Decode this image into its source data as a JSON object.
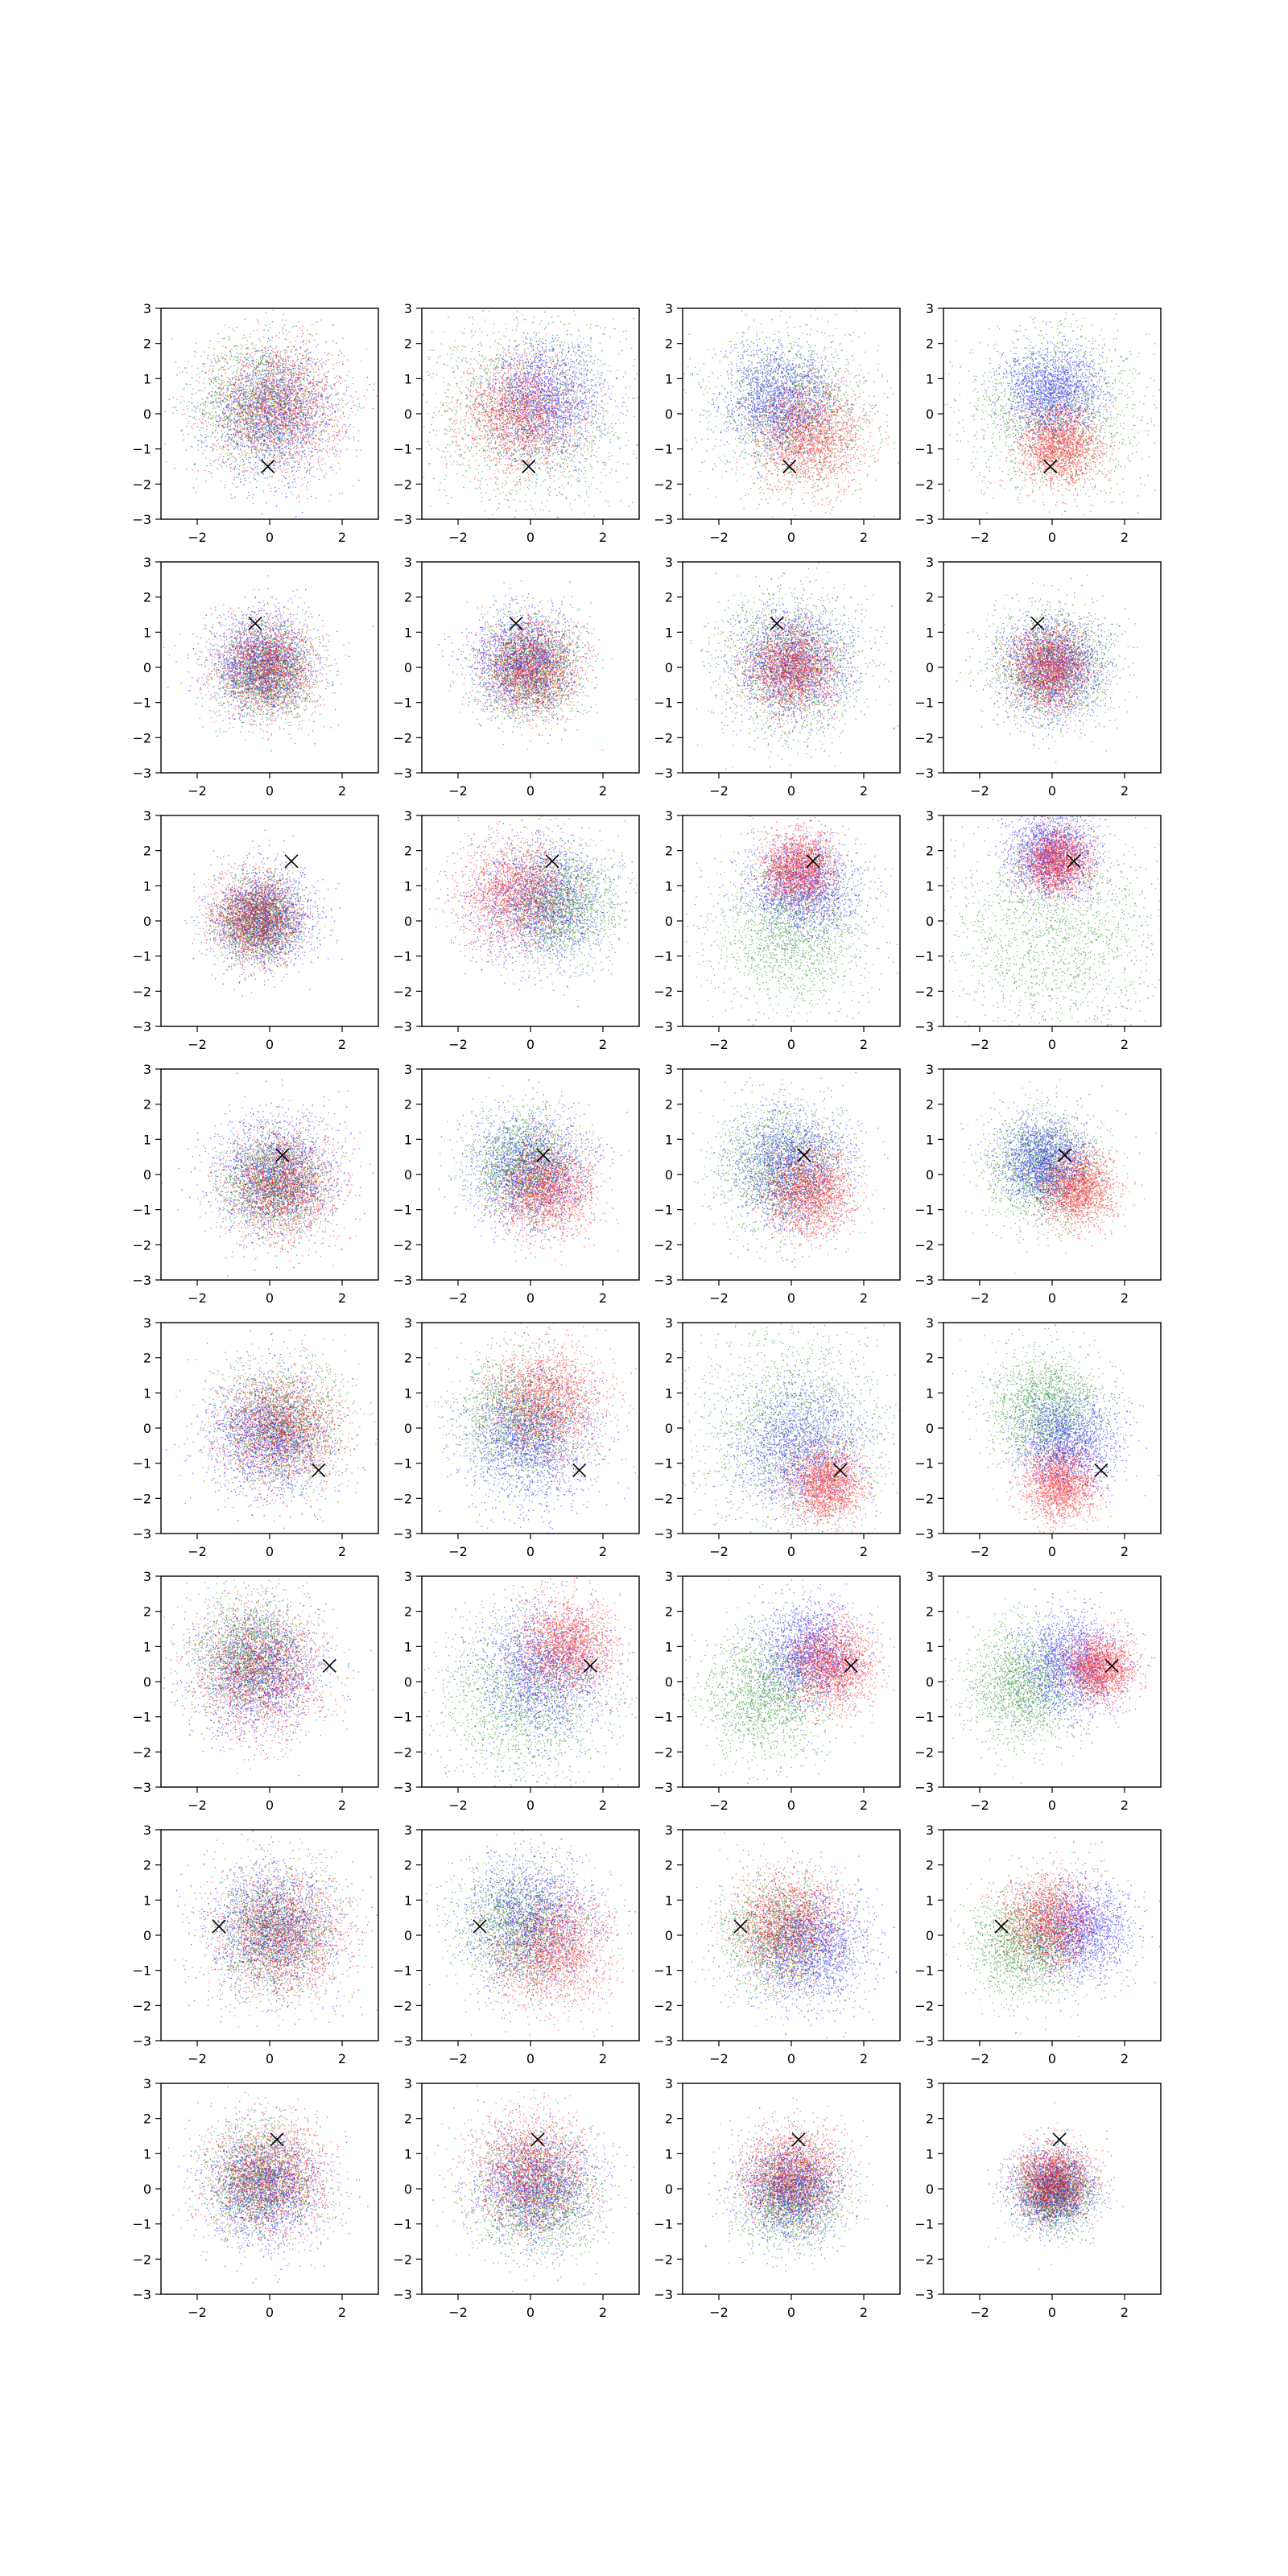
{
  "chart_data": {
    "type": "scatter",
    "layout": {
      "rows": 8,
      "cols": 4
    },
    "axes": {
      "xlim": [
        -3,
        3
      ],
      "ylim": [
        -3,
        3
      ],
      "xticks": [
        -2,
        0,
        2
      ],
      "yticks": [
        -3,
        -2,
        -1,
        0,
        1,
        2,
        3
      ],
      "grid": false
    },
    "series_colors": {
      "red": "#ff0000",
      "green": "#008000",
      "blue": "#0000ff",
      "marker": "#000000"
    },
    "points_per_series": 1800,
    "tick_labels": {
      "x": [
        "−2",
        "0",
        "2"
      ],
      "y": [
        "−3",
        "−2",
        "−1",
        "0",
        "1",
        "2",
        "3"
      ]
    },
    "panels": [
      {
        "marker": [
          -0.05,
          -1.5
        ],
        "r": {
          "c": [
            0.2,
            0.2
          ],
          "s": 0.9
        },
        "g": {
          "c": [
            -0.2,
            0.3
          ],
          "s": 0.9
        },
        "b": {
          "c": [
            0.1,
            0.0
          ],
          "s": 0.9
        }
      },
      {
        "marker": [
          -0.05,
          -1.5
        ],
        "r": {
          "c": [
            -0.3,
            0.0
          ],
          "s": 0.8
        },
        "g": {
          "c": [
            0.0,
            0.0
          ],
          "s": 1.4
        },
        "b": {
          "c": [
            0.4,
            0.4
          ],
          "s": 0.8
        }
      },
      {
        "marker": [
          -0.05,
          -1.5
        ],
        "r": {
          "c": [
            0.5,
            -0.6
          ],
          "s": 0.75
        },
        "g": {
          "c": [
            0.0,
            0.0
          ],
          "s": 1.1
        },
        "b": {
          "c": [
            -0.3,
            0.4
          ],
          "s": 0.75
        }
      },
      {
        "marker": [
          -0.05,
          -1.5
        ],
        "r": {
          "c": [
            0.2,
            -0.9
          ],
          "s": 0.55
        },
        "g": {
          "c": [
            0.0,
            0.0
          ],
          "s": 1.2
        },
        "b": {
          "c": [
            0.0,
            0.6
          ],
          "s": 0.65
        }
      },
      {
        "marker": [
          -0.4,
          1.25
        ],
        "r": {
          "c": [
            -0.1,
            0.0
          ],
          "s": 0.7
        },
        "g": {
          "c": [
            -0.1,
            -0.1
          ],
          "s": 0.65
        },
        "b": {
          "c": [
            -0.2,
            0.1
          ],
          "s": 0.7
        }
      },
      {
        "marker": [
          -0.4,
          1.25
        ],
        "r": {
          "c": [
            0.0,
            0.0
          ],
          "s": 0.65
        },
        "g": {
          "c": [
            0.0,
            0.0
          ],
          "s": 0.7
        },
        "b": {
          "c": [
            -0.2,
            0.2
          ],
          "s": 0.7
        }
      },
      {
        "marker": [
          -0.4,
          1.25
        ],
        "r": {
          "c": [
            0.0,
            0.0
          ],
          "s": 0.6
        },
        "g": {
          "c": [
            0.0,
            0.0
          ],
          "s": 1.0
        },
        "b": {
          "c": [
            0.0,
            0.1
          ],
          "s": 0.8
        }
      },
      {
        "marker": [
          -0.4,
          1.25
        ],
        "r": {
          "c": [
            -0.1,
            0.0
          ],
          "s": 0.55
        },
        "g": {
          "c": [
            0.0,
            0.0
          ],
          "s": 0.8
        },
        "b": {
          "c": [
            0.0,
            0.0
          ],
          "s": 0.7
        }
      },
      {
        "marker": [
          0.6,
          1.7
        ],
        "r": {
          "c": [
            -0.4,
            0.1
          ],
          "s": 0.6
        },
        "g": {
          "c": [
            -0.3,
            0.0
          ],
          "s": 0.55
        },
        "b": {
          "c": [
            -0.2,
            0.1
          ],
          "s": 0.7
        }
      },
      {
        "marker": [
          0.6,
          1.7
        ],
        "r": {
          "c": [
            -0.4,
            0.8
          ],
          "s": 0.8
        },
        "g": {
          "c": [
            0.8,
            0.5
          ],
          "s": 0.8
        },
        "b": {
          "c": [
            0.2,
            0.6
          ],
          "s": 0.9
        }
      },
      {
        "marker": [
          0.6,
          1.7
        ],
        "r": {
          "c": [
            0.2,
            1.5
          ],
          "s": 0.5
        },
        "g": {
          "c": [
            0.0,
            -0.2
          ],
          "s": 1.1
        },
        "b": {
          "c": [
            0.3,
            1.0
          ],
          "s": 0.7
        }
      },
      {
        "marker": [
          0.6,
          1.7
        ],
        "r": {
          "c": [
            0.1,
            1.7
          ],
          "s": 0.45
        },
        "g": {
          "c": [
            0.0,
            -0.3
          ],
          "s": 1.5
        },
        "b": {
          "c": [
            0.0,
            1.9
          ],
          "s": 0.6
        }
      },
      {
        "marker": [
          0.35,
          0.55
        ],
        "r": {
          "c": [
            0.3,
            -0.3
          ],
          "s": 0.75
        },
        "g": {
          "c": [
            0.1,
            -0.2
          ],
          "s": 0.7
        },
        "b": {
          "c": [
            0.2,
            0.0
          ],
          "s": 0.85
        }
      },
      {
        "marker": [
          0.35,
          0.55
        ],
        "r": {
          "c": [
            0.4,
            -0.4
          ],
          "s": 0.65
        },
        "g": {
          "c": [
            -0.2,
            0.3
          ],
          "s": 0.75
        },
        "b": {
          "c": [
            0.0,
            0.1
          ],
          "s": 0.8
        }
      },
      {
        "marker": [
          0.35,
          0.55
        ],
        "r": {
          "c": [
            0.5,
            -0.5
          ],
          "s": 0.6
        },
        "g": {
          "c": [
            -0.3,
            0.3
          ],
          "s": 0.9
        },
        "b": {
          "c": [
            0.0,
            0.2
          ],
          "s": 0.8
        }
      },
      {
        "marker": [
          0.35,
          0.55
        ],
        "r": {
          "c": [
            0.7,
            -0.4
          ],
          "s": 0.5
        },
        "g": {
          "c": [
            -0.2,
            0.2
          ],
          "s": 0.8
        },
        "b": {
          "c": [
            -0.2,
            0.4
          ],
          "s": 0.6
        }
      },
      {
        "marker": [
          1.35,
          -1.2
        ],
        "r": {
          "c": [
            0.3,
            0.0
          ],
          "s": 0.8
        },
        "g": {
          "c": [
            0.3,
            0.1
          ],
          "s": 0.85
        },
        "b": {
          "c": [
            0.0,
            -0.2
          ],
          "s": 0.85
        }
      },
      {
        "marker": [
          1.35,
          -1.2
        ],
        "r": {
          "c": [
            0.4,
            0.8
          ],
          "s": 0.8
        },
        "g": {
          "c": [
            -0.3,
            0.3
          ],
          "s": 0.9
        },
        "b": {
          "c": [
            0.0,
            -0.3
          ],
          "s": 0.9
        }
      },
      {
        "marker": [
          1.35,
          -1.2
        ],
        "r": {
          "c": [
            1.0,
            -1.6
          ],
          "s": 0.5
        },
        "g": {
          "c": [
            0.0,
            0.0
          ],
          "s": 1.4
        },
        "b": {
          "c": [
            0.2,
            -0.5
          ],
          "s": 0.9
        }
      },
      {
        "marker": [
          1.35,
          -1.2
        ],
        "r": {
          "c": [
            0.2,
            -1.6
          ],
          "s": 0.5
        },
        "g": {
          "c": [
            -0.2,
            0.6
          ],
          "s": 0.8
        },
        "b": {
          "c": [
            0.4,
            -0.4
          ],
          "s": 0.7
        }
      },
      {
        "marker": [
          1.65,
          0.45
        ],
        "r": {
          "c": [
            -0.3,
            0.3
          ],
          "s": 0.9
        },
        "g": {
          "c": [
            -0.5,
            0.7
          ],
          "s": 0.8
        },
        "b": {
          "c": [
            -0.3,
            0.3
          ],
          "s": 0.85
        }
      },
      {
        "marker": [
          1.65,
          0.45
        ],
        "r": {
          "c": [
            1.0,
            1.0
          ],
          "s": 0.65
        },
        "g": {
          "c": [
            -0.2,
            -0.5
          ],
          "s": 1.2
        },
        "b": {
          "c": [
            0.3,
            0.3
          ],
          "s": 0.9
        }
      },
      {
        "marker": [
          1.65,
          0.45
        ],
        "r": {
          "c": [
            1.1,
            0.5
          ],
          "s": 0.6
        },
        "g": {
          "c": [
            -0.7,
            -0.3
          ],
          "s": 0.9
        },
        "b": {
          "c": [
            0.5,
            0.8
          ],
          "s": 0.7
        }
      },
      {
        "marker": [
          1.65,
          0.45
        ],
        "r": {
          "c": [
            1.3,
            0.4
          ],
          "s": 0.45
        },
        "g": {
          "c": [
            -0.8,
            -0.1
          ],
          "s": 0.8
        },
        "b": {
          "c": [
            0.5,
            0.5
          ],
          "s": 0.7
        }
      },
      {
        "marker": [
          -1.4,
          0.25
        ],
        "r": {
          "c": [
            0.3,
            0.0
          ],
          "s": 0.85
        },
        "g": {
          "c": [
            0.1,
            0.1
          ],
          "s": 0.85
        },
        "b": {
          "c": [
            0.1,
            0.2
          ],
          "s": 0.9
        }
      },
      {
        "marker": [
          -1.4,
          0.25
        ],
        "r": {
          "c": [
            0.6,
            -0.4
          ],
          "s": 0.8
        },
        "g": {
          "c": [
            -0.3,
            0.2
          ],
          "s": 0.9
        },
        "b": {
          "c": [
            0.0,
            0.4
          ],
          "s": 0.9
        }
      },
      {
        "marker": [
          -1.4,
          0.25
        ],
        "r": {
          "c": [
            -0.1,
            0.3
          ],
          "s": 0.75
        },
        "g": {
          "c": [
            -0.3,
            0.0
          ],
          "s": 0.85
        },
        "b": {
          "c": [
            0.5,
            -0.3
          ],
          "s": 0.8
        }
      },
      {
        "marker": [
          -1.4,
          0.25
        ],
        "r": {
          "c": [
            -0.1,
            0.4
          ],
          "s": 0.65
        },
        "g": {
          "c": [
            -0.7,
            -0.3
          ],
          "s": 0.75
        },
        "b": {
          "c": [
            0.8,
            0.2
          ],
          "s": 0.7
        }
      },
      {
        "marker": [
          0.2,
          1.4
        ],
        "r": {
          "c": [
            -0.1,
            0.3
          ],
          "s": 0.8
        },
        "g": {
          "c": [
            -0.3,
            0.3
          ],
          "s": 0.75
        },
        "b": {
          "c": [
            -0.1,
            0.0
          ],
          "s": 0.8
        }
      },
      {
        "marker": [
          0.2,
          1.4
        ],
        "r": {
          "c": [
            0.0,
            0.5
          ],
          "s": 0.8
        },
        "g": {
          "c": [
            0.2,
            -0.2
          ],
          "s": 0.85
        },
        "b": {
          "c": [
            0.1,
            0.1
          ],
          "s": 0.8
        }
      },
      {
        "marker": [
          0.2,
          1.4
        ],
        "r": {
          "c": [
            0.0,
            0.4
          ],
          "s": 0.65
        },
        "g": {
          "c": [
            0.0,
            -0.2
          ],
          "s": 0.7
        },
        "b": {
          "c": [
            0.0,
            0.0
          ],
          "s": 0.7
        }
      },
      {
        "marker": [
          0.2,
          1.4
        ],
        "r": {
          "c": [
            0.0,
            0.2
          ],
          "s": 0.5
        },
        "g": {
          "c": [
            0.0,
            -0.1
          ],
          "s": 0.5
        },
        "b": {
          "c": [
            0.0,
            0.0
          ],
          "s": 0.55
        }
      }
    ]
  }
}
